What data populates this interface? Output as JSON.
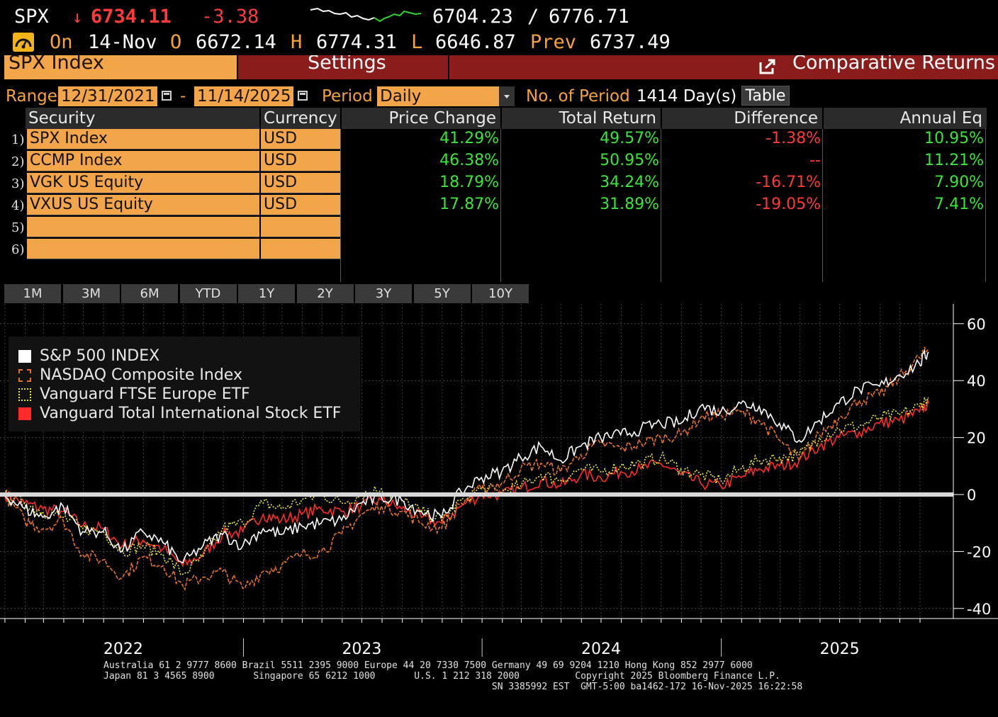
{
  "header": {
    "ticker": "SPX",
    "arrow": "↓",
    "last_price": "6734.11",
    "change": "-3.38",
    "bid": "6704.23",
    "separator": "/",
    "ask": "6776.71",
    "on_label": "On",
    "date": "14-Nov",
    "open_label": "O",
    "open": "6672.14",
    "high_label": "H",
    "high": "6774.31",
    "low_label": "L",
    "low": "6646.87",
    "prev_label": "Prev",
    "prev": "6737.49"
  },
  "tabs": {
    "security": "SPX Index",
    "settings": "Settings",
    "comparative": "Comparative Returns"
  },
  "range": {
    "range_label": "Range",
    "start": "12/31/2021",
    "dash": "-",
    "end": "11/14/2025",
    "period_label": "Period",
    "period_value": "Daily",
    "num_period_label": "No. of Period",
    "num_period_value": "1414 Day(s)",
    "table_button": "Table"
  },
  "table": {
    "headers": {
      "security": "Security",
      "currency": "Currency",
      "price_change": "Price Change",
      "total_return": "Total Return",
      "difference": "Difference",
      "annual_eq": "Annual Eq"
    },
    "rows": [
      {
        "num": "1)",
        "security": "SPX Index",
        "currency": "USD",
        "price_change": "41.29%",
        "total_return": "49.57%",
        "difference": "-1.38%",
        "annual_eq": "10.95%"
      },
      {
        "num": "2)",
        "security": "CCMP Index",
        "currency": "USD",
        "price_change": "46.38%",
        "total_return": "50.95%",
        "difference": "--",
        "annual_eq": "11.21%"
      },
      {
        "num": "3)",
        "security": "VGK US Equity",
        "currency": "USD",
        "price_change": "18.79%",
        "total_return": "34.24%",
        "difference": "-16.71%",
        "annual_eq": "7.90%"
      },
      {
        "num": "4)",
        "security": "VXUS US Equity",
        "currency": "USD",
        "price_change": "17.87%",
        "total_return": "31.89%",
        "difference": "-19.05%",
        "annual_eq": "7.41%"
      },
      {
        "num": "5)",
        "security": "",
        "currency": "",
        "price_change": "",
        "total_return": "",
        "difference": "",
        "annual_eq": ""
      },
      {
        "num": "6)",
        "security": "",
        "currency": "",
        "price_change": "",
        "total_return": "",
        "difference": "",
        "annual_eq": ""
      }
    ]
  },
  "periods": [
    "1M",
    "3M",
    "6M",
    "YTD",
    "1Y",
    "2Y",
    "3Y",
    "5Y",
    "10Y"
  ],
  "footer": {
    "line1": "Australia 61 2 9777 8600 Brazil 5511 2395 9000 Europe 44 20 7330 7500 Germany 49 69 9204 1210 Hong Kong 852 2977 6000",
    "line2": "Japan 81 3 4565 8900       Singapore 65 6212 1000       U.S. 1 212 318 2000          Copyright 2025 Bloomberg Finance L.P.",
    "line3": "                                                                      SN 3385992 EST  GMT-5:00 ba1462-172 16-Nov-2025 16:22:58"
  },
  "colors": {
    "amber": "#f5a33a",
    "field_orange": "#f2a649",
    "tab_red": "#8b1c1c",
    "positive": "#38e638",
    "negative": "#ff3838",
    "spx_line": "#ffffff",
    "nasdaq_line": "#e2722a",
    "vgk_line": "#e8e83a",
    "vxus_line": "#ff2a2a"
  },
  "chart_data": {
    "type": "line",
    "x": [
      "2021-12-31",
      "2022-01-31",
      "2022-02-28",
      "2022-03-31",
      "2022-04-30",
      "2022-05-31",
      "2022-06-30",
      "2022-07-31",
      "2022-08-31",
      "2022-09-30",
      "2022-10-31",
      "2022-11-30",
      "2022-12-31",
      "2023-01-31",
      "2023-02-28",
      "2023-03-31",
      "2023-04-30",
      "2023-05-31",
      "2023-06-30",
      "2023-07-31",
      "2023-08-31",
      "2023-09-30",
      "2023-10-31",
      "2023-11-30",
      "2023-12-31",
      "2024-01-31",
      "2024-02-29",
      "2024-03-31",
      "2024-04-30",
      "2024-05-31",
      "2024-06-30",
      "2024-07-31",
      "2024-08-31",
      "2024-09-30",
      "2024-10-31",
      "2024-11-30",
      "2024-12-31",
      "2025-01-31",
      "2025-02-28",
      "2025-03-31",
      "2025-04-30",
      "2025-05-31",
      "2025-06-30",
      "2025-07-31",
      "2025-08-31",
      "2025-09-30",
      "2025-10-31",
      "2025-11-14"
    ],
    "series": [
      {
        "name": "S&P 500 INDEX",
        "values": [
          0,
          -5,
          -8,
          -4,
          -13,
          -13,
          -20,
          -13,
          -17,
          -24,
          -18,
          -14,
          -18,
          -12,
          -14,
          -11,
          -10,
          -9,
          -3,
          -1,
          -2,
          -6,
          -8,
          1,
          6,
          8,
          13,
          17,
          12,
          17,
          20,
          21,
          23,
          25,
          25,
          31,
          29,
          32,
          31,
          25,
          19,
          26,
          32,
          37,
          38,
          42,
          46,
          50
        ]
      },
      {
        "name": "NASDAQ Composite Index",
        "values": [
          0,
          -9,
          -12,
          -9,
          -21,
          -23,
          -29,
          -22,
          -25,
          -32,
          -29,
          -27,
          -33,
          -27,
          -25,
          -21,
          -20,
          -14,
          -7,
          -4,
          -6,
          -10,
          -12,
          -3,
          2,
          4,
          9,
          11,
          8,
          14,
          18,
          16,
          18,
          20,
          21,
          27,
          28,
          29,
          26,
          19,
          12,
          21,
          27,
          33,
          35,
          41,
          48,
          51
        ]
      },
      {
        "name": "Vanguard FTSE Europe ETF",
        "values": [
          0,
          -3,
          -6,
          -8,
          -12,
          -13,
          -20,
          -18,
          -21,
          -28,
          -22,
          -12,
          -10,
          -3,
          -5,
          -2,
          0,
          -3,
          0,
          2,
          -2,
          -6,
          -9,
          -2,
          2,
          1,
          3,
          7,
          5,
          9,
          8,
          10,
          11,
          13,
          9,
          7,
          5,
          9,
          12,
          13,
          14,
          20,
          23,
          24,
          27,
          28,
          31,
          34
        ]
      },
      {
        "name": "Vanguard Total International Stock ETF",
        "values": [
          0,
          -3,
          -5,
          -6,
          -11,
          -12,
          -18,
          -16,
          -19,
          -25,
          -21,
          -14,
          -13,
          -7,
          -9,
          -7,
          -5,
          -6,
          -4,
          -2,
          -5,
          -8,
          -10,
          -4,
          0,
          0,
          2,
          5,
          3,
          7,
          6,
          8,
          9,
          11,
          7,
          4,
          3,
          6,
          9,
          10,
          12,
          17,
          20,
          22,
          25,
          26,
          29,
          32
        ]
      }
    ],
    "y_ticks": [
      60,
      40,
      20,
      0,
      -20,
      -40
    ],
    "x_labels": [
      "2022",
      "2023",
      "2024",
      "2025"
    ],
    "ylim": [
      -42,
      62
    ],
    "legend_placement": "top-left",
    "grid": true
  }
}
